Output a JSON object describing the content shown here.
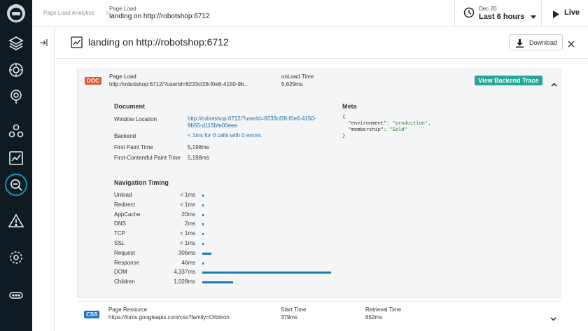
{
  "breadcrumb": {
    "root": "Page Load Analytics",
    "category": "Page Load",
    "page": "landing on http://robotshop:6712"
  },
  "time_range": {
    "date": "Dec 20",
    "range": "Last 6 hours"
  },
  "live_label": "Live",
  "panel": {
    "title": "landing on http://robotshop:6712",
    "download_label": "Download"
  },
  "doc_row": {
    "badge": "DOC",
    "col1_label": "Page Load",
    "col1_value": "http://robotshop:6712/?userId=8233cf28-f0e6-4150-9b...",
    "col2_label": "onLoad Time",
    "col2_value": "5,629ms",
    "trace_button": "View Backend Trace"
  },
  "document": {
    "title": "Document",
    "fields": [
      {
        "label": "Window Location",
        "value_line1": "http://robotshop:6712/?userId=8233cf28-f0e6-4150-",
        "value_line2": "9b55-d115bfe00eee"
      },
      {
        "label": "Backend",
        "value": "< 1ms for 0 calls with 0 errors."
      },
      {
        "label": "First Paint Time",
        "value": "5,198ms"
      },
      {
        "label": "First-Contentful Paint Time",
        "value": "5,198ms"
      }
    ]
  },
  "meta": {
    "title": "Meta",
    "open_brace": "{",
    "line1_key": "\"environment\": ",
    "line1_val": "\"production\"",
    "line1_end": ",",
    "line2_key": "\"membership\": ",
    "line2_val": "\"Gold\"",
    "close_brace": "}"
  },
  "navigation_timing": {
    "title": "Navigation Timing",
    "max_ms": 4337,
    "rows": [
      {
        "label": "Unload",
        "value": "< 1ms",
        "ms": 0
      },
      {
        "label": "Redirect",
        "value": "< 1ms",
        "ms": 0
      },
      {
        "label": "AppCache",
        "value": "20ms",
        "ms": 20
      },
      {
        "label": "DNS",
        "value": "2ms",
        "ms": 2
      },
      {
        "label": "TCP",
        "value": "< 1ms",
        "ms": 0
      },
      {
        "label": "SSL",
        "value": "< 1ms",
        "ms": 0
      },
      {
        "label": "Request",
        "value": "306ms",
        "ms": 306
      },
      {
        "label": "Response",
        "value": "46ms",
        "ms": 46
      },
      {
        "label": "DOM",
        "value": "4,337ms",
        "ms": 4337
      },
      {
        "label": "Children",
        "value": "1,028ms",
        "ms": 1028
      }
    ]
  },
  "css_row": {
    "badge": "CSS",
    "col1_label": "Page Resource",
    "col1_value": "https://fonts.googleapis.com/css?family=Orbitron",
    "col2_label": "Start Time",
    "col2_value": "379ms",
    "col3_label": "Retrieval Time",
    "col3_value": "652ms"
  },
  "colors": {
    "nav_bg": "#0f1b23",
    "accent": "#1e8fb5",
    "trace_button": "#26a69a",
    "doc_badge": "#e0542f",
    "css_badge": "#1a75c9",
    "bar": "#1a7bb3"
  }
}
